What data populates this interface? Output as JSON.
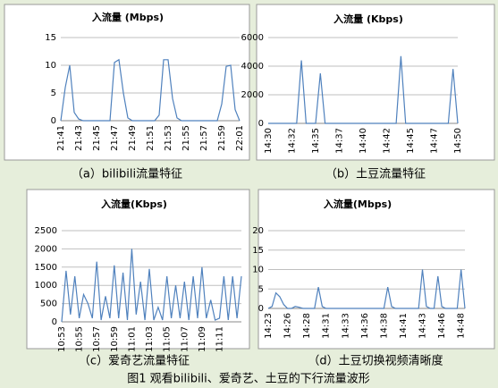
{
  "chart_data": [
    {
      "type": "line",
      "title": "入流量 (Mbps)",
      "caption": "（a）bilibili流量特征",
      "categories": [
        "21:41",
        null,
        null,
        null,
        "21:43",
        null,
        null,
        null,
        "21:45",
        null,
        null,
        null,
        "21:47",
        null,
        null,
        null,
        "21:49",
        null,
        null,
        null,
        "21:51",
        null,
        null,
        null,
        "21:53",
        null,
        null,
        null,
        "21:55",
        null,
        null,
        null,
        "21:57",
        null,
        null,
        null,
        "21:59",
        null,
        null,
        null,
        "22:01"
      ],
      "series": [
        {
          "color": "#4f81bd",
          "values": [
            0,
            6,
            10,
            1.5,
            0.3,
            0,
            0,
            0,
            0,
            0,
            0,
            0,
            10.5,
            11,
            5,
            0.5,
            0,
            0,
            0,
            0,
            0,
            0,
            1,
            11,
            11,
            4,
            0.5,
            0,
            0,
            0,
            0,
            0,
            0,
            0,
            0,
            0,
            3,
            9.8,
            10,
            2,
            0
          ]
        }
      ],
      "ylim": [
        0,
        15
      ],
      "yticks": [
        0,
        5,
        10,
        15
      ],
      "grid": true
    },
    {
      "type": "line",
      "title": "入流量 (Kbps)",
      "caption": "（b）土豆流量特征",
      "categories": [
        "14:30",
        null,
        null,
        null,
        null,
        "14:32",
        null,
        null,
        null,
        null,
        "14:35",
        null,
        null,
        null,
        null,
        "14:37",
        null,
        null,
        null,
        null,
        "14:40",
        null,
        null,
        null,
        null,
        "14:42",
        null,
        null,
        null,
        null,
        "14:45",
        null,
        null,
        null,
        null,
        "14:47",
        null,
        null,
        null,
        null,
        "14:50"
      ],
      "series": [
        {
          "color": "#4f81bd",
          "values": [
            0,
            0,
            0,
            0,
            0,
            0,
            0,
            4400,
            0,
            0,
            0,
            3500,
            0,
            0,
            0,
            0,
            0,
            0,
            0,
            0,
            0,
            0,
            0,
            0,
            0,
            0,
            0,
            0,
            4700,
            0,
            0,
            0,
            0,
            0,
            0,
            0,
            0,
            0,
            0,
            3800,
            0
          ]
        }
      ],
      "ylim": [
        0,
        6000
      ],
      "yticks": [
        0,
        2000,
        4000,
        6000
      ],
      "grid": true
    },
    {
      "type": "line",
      "title": "入流量(Kbps)",
      "caption": "（c）爱奇艺流量特征",
      "categories": [
        "10:53",
        null,
        null,
        null,
        "10:55",
        null,
        null,
        null,
        "10:57",
        null,
        null,
        null,
        "10:59",
        null,
        null,
        null,
        "11:01",
        null,
        null,
        null,
        "11:03",
        null,
        null,
        null,
        "11:05",
        null,
        null,
        null,
        "11:07",
        null,
        null,
        null,
        "11:09",
        null,
        null,
        null,
        "11:11",
        null,
        null,
        null,
        null,
        null
      ],
      "series": [
        {
          "color": "#4f81bd",
          "values": [
            0,
            1400,
            200,
            1250,
            100,
            750,
            500,
            100,
            1650,
            50,
            700,
            100,
            1550,
            100,
            1350,
            50,
            2000,
            200,
            1100,
            50,
            1450,
            50,
            400,
            50,
            1250,
            100,
            1000,
            100,
            1100,
            50,
            1250,
            100,
            1500,
            100,
            600,
            50,
            100,
            1250,
            50,
            1250,
            100,
            1250
          ]
        }
      ],
      "ylim": [
        0,
        2500
      ],
      "yticks": [
        0,
        500,
        1000,
        1500,
        2000,
        2500
      ],
      "grid": true
    },
    {
      "type": "line",
      "title": "入流量(Mbps)",
      "caption": "（d）土豆切换视频清晰度",
      "categories": [
        "14:23",
        null,
        null,
        null,
        null,
        "14:26",
        null,
        null,
        null,
        null,
        "14:28",
        null,
        null,
        null,
        null,
        "14:31",
        null,
        null,
        null,
        null,
        "14:33",
        null,
        null,
        null,
        null,
        "14:36",
        null,
        null,
        null,
        null,
        "14:38",
        null,
        null,
        null,
        null,
        "14:41",
        null,
        null,
        null,
        null,
        "14:43",
        null,
        null,
        null,
        null,
        "14:46",
        null,
        null,
        null,
        null,
        "14:48",
        null
      ],
      "series": [
        {
          "color": "#4f81bd",
          "values": [
            0,
            0.5,
            4,
            3,
            1,
            0,
            0,
            0.5,
            0.3,
            0,
            0,
            0,
            0,
            5.5,
            0.5,
            0,
            0,
            0,
            0,
            0,
            0,
            0,
            0,
            0,
            0,
            0,
            0,
            0,
            0,
            0,
            0,
            5.5,
            0.5,
            0,
            0,
            0,
            0,
            0,
            0,
            0,
            10,
            0.5,
            0,
            0,
            8.3,
            0.5,
            0,
            0,
            0,
            0,
            10,
            0
          ]
        }
      ],
      "ylim": [
        0,
        20
      ],
      "yticks": [
        0,
        5,
        10,
        15,
        20
      ],
      "grid": true
    }
  ],
  "figure_caption": "图1 观看bilibili、爱奇艺、土豆的下行流量波形"
}
